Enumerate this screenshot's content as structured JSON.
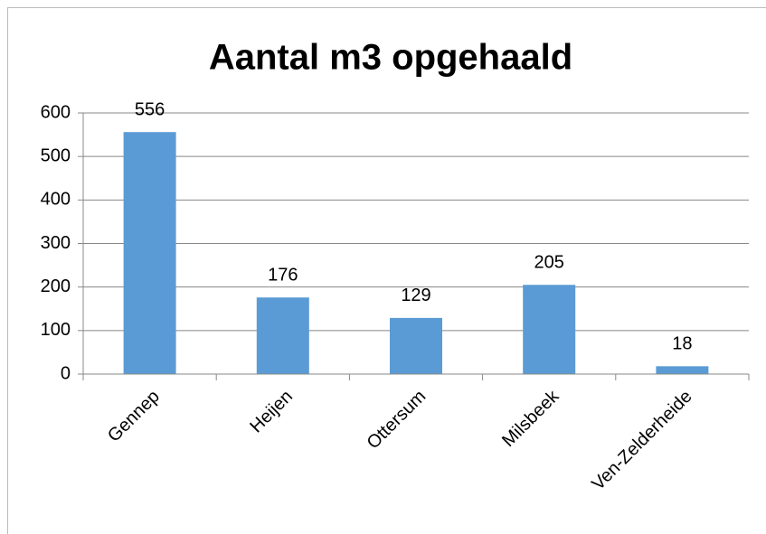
{
  "chart_data": {
    "type": "bar",
    "title": "Aantal m3 opgehaald",
    "categories": [
      "Gennep",
      "Heijen",
      "Ottersum",
      "Milsbeek",
      "Ven-Zelderheide"
    ],
    "values": [
      556,
      176,
      129,
      205,
      18
    ],
    "color": "#5b9bd5",
    "ylim": [
      0,
      600
    ],
    "yticks": [
      0,
      100,
      200,
      300,
      400,
      500,
      600
    ],
    "grid": true
  }
}
